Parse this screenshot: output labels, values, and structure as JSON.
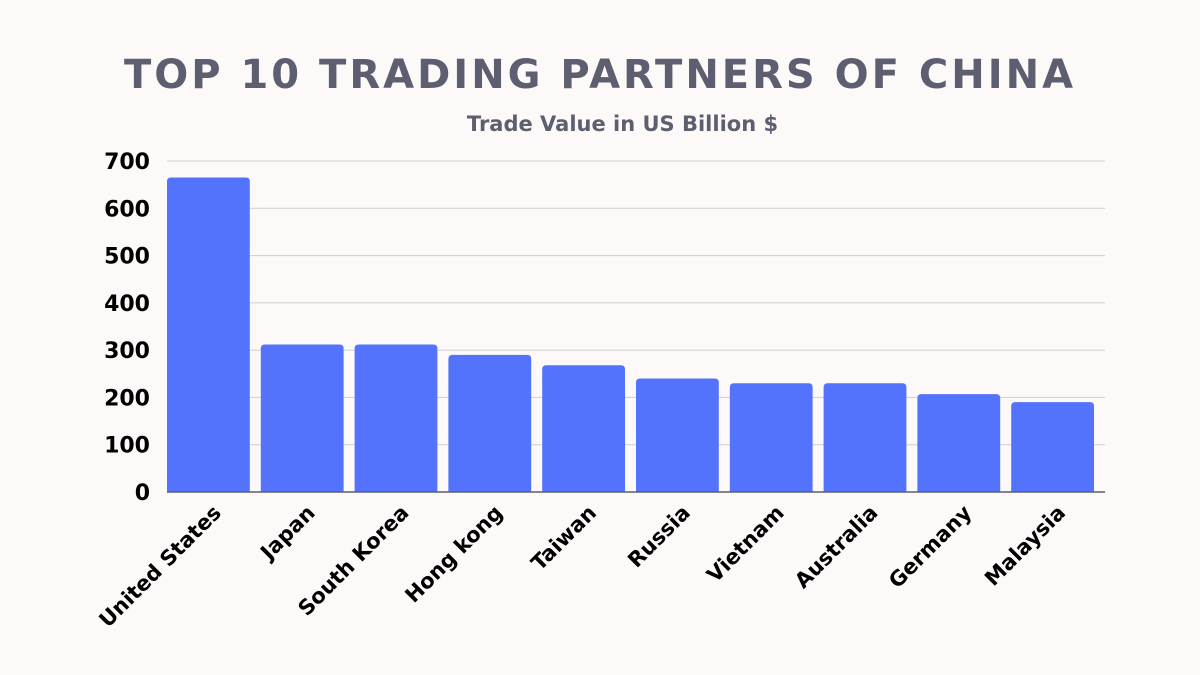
{
  "chart_data": {
    "type": "bar",
    "title": "TOP 10 TRADING PARTNERS OF CHINA",
    "subtitle": "Trade Value in US Billion $",
    "xlabel": "",
    "ylabel": "",
    "ylim": [
      0,
      700
    ],
    "yticks": [
      0,
      100,
      200,
      300,
      400,
      500,
      600,
      700
    ],
    "grid": true,
    "categories": [
      "United States",
      "Japan",
      "South Korea",
      "Hong kong",
      "Taiwan",
      "Russia",
      "Vietnam",
      "Australia",
      "Germany",
      "Malaysia"
    ],
    "values": [
      665,
      312,
      312,
      290,
      268,
      240,
      230,
      230,
      207,
      190
    ],
    "bar_color": "#5373fd"
  }
}
